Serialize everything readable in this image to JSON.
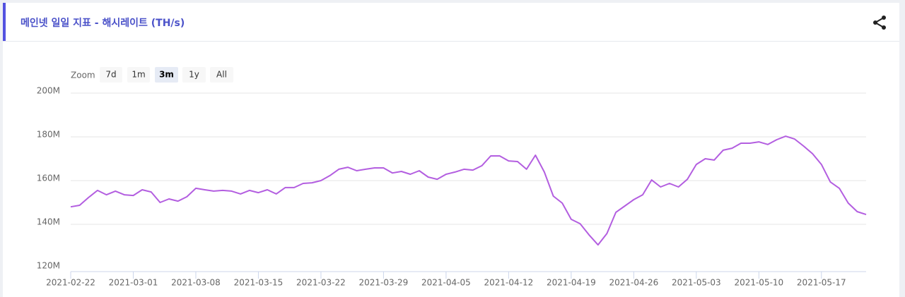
{
  "header": {
    "title": "메인넷 일일 지표 - 해시레이트 (TH/s)"
  },
  "zoom": {
    "label": "Zoom",
    "buttons": [
      "7d",
      "1m",
      "3m",
      "1y",
      "All"
    ],
    "selected": 2
  },
  "chart_data": {
    "type": "line",
    "color": "#b35ee0",
    "x": [
      "2021-02-22",
      "2021-02-23",
      "2021-02-24",
      "2021-02-25",
      "2021-02-26",
      "2021-02-27",
      "2021-02-28",
      "2021-03-01",
      "2021-03-02",
      "2021-03-03",
      "2021-03-04",
      "2021-03-05",
      "2021-03-06",
      "2021-03-07",
      "2021-03-08",
      "2021-03-09",
      "2021-03-10",
      "2021-03-11",
      "2021-03-12",
      "2021-03-13",
      "2021-03-14",
      "2021-03-15",
      "2021-03-16",
      "2021-03-17",
      "2021-03-18",
      "2021-03-19",
      "2021-03-20",
      "2021-03-21",
      "2021-03-22",
      "2021-03-23",
      "2021-03-24",
      "2021-03-25",
      "2021-03-26",
      "2021-03-27",
      "2021-03-28",
      "2021-03-29",
      "2021-03-30",
      "2021-03-31",
      "2021-04-01",
      "2021-04-02",
      "2021-04-03",
      "2021-04-04",
      "2021-04-05",
      "2021-04-06",
      "2021-04-07",
      "2021-04-08",
      "2021-04-09",
      "2021-04-10",
      "2021-04-11",
      "2021-04-12",
      "2021-04-13",
      "2021-04-14",
      "2021-04-15",
      "2021-04-16",
      "2021-04-17",
      "2021-04-18",
      "2021-04-19",
      "2021-04-20",
      "2021-04-21",
      "2021-04-22",
      "2021-04-23",
      "2021-04-24",
      "2021-04-25",
      "2021-04-26",
      "2021-04-27",
      "2021-04-28",
      "2021-04-29",
      "2021-04-30",
      "2021-05-01",
      "2021-05-02",
      "2021-05-03",
      "2021-05-04",
      "2021-05-05",
      "2021-05-06",
      "2021-05-07",
      "2021-05-08",
      "2021-05-09",
      "2021-05-10",
      "2021-05-11",
      "2021-05-12",
      "2021-05-13",
      "2021-05-14",
      "2021-05-15",
      "2021-05-16",
      "2021-05-17",
      "2021-05-18",
      "2021-05-19",
      "2021-05-20",
      "2021-05-21",
      "2021-05-22"
    ],
    "values": [
      148000000,
      148700000,
      152300000,
      155500000,
      153500000,
      155200000,
      153500000,
      153200000,
      155800000,
      154800000,
      150000000,
      151600000,
      150600000,
      152600000,
      156500000,
      155800000,
      155200000,
      155500000,
      155200000,
      153900000,
      155500000,
      154500000,
      155800000,
      153900000,
      156800000,
      156800000,
      158700000,
      159000000,
      160000000,
      162300000,
      165200000,
      166100000,
      164500000,
      165200000,
      165800000,
      165800000,
      163500000,
      164200000,
      162900000,
      164500000,
      161600000,
      160600000,
      162900000,
      163900000,
      165200000,
      164800000,
      166800000,
      171300000,
      171300000,
      169000000,
      168700000,
      165200000,
      171600000,
      163900000,
      152900000,
      149700000,
      142300000,
      140300000,
      135200000,
      130600000,
      135800000,
      145500000,
      148400000,
      151300000,
      153500000,
      160300000,
      157100000,
      158700000,
      157100000,
      160600000,
      167400000,
      170000000,
      169400000,
      173900000,
      174800000,
      177100000,
      177100000,
      177700000,
      176500000,
      178700000,
      180300000,
      179000000,
      175800000,
      172300000,
      167400000,
      159400000,
      156500000,
      149700000,
      145800000,
      144500000
    ],
    "xlim": [
      "2021-02-22",
      "2021-05-22"
    ],
    "xticks": [
      "2021-02-22",
      "2021-03-01",
      "2021-03-08",
      "2021-03-15",
      "2021-03-22",
      "2021-03-29",
      "2021-04-05",
      "2021-04-12",
      "2021-04-19",
      "2021-04-26",
      "2021-05-03",
      "2021-05-10",
      "2021-05-17"
    ],
    "ylim": [
      120000000,
      200000000
    ],
    "yticks": [
      {
        "value": 120000000,
        "label": "120M"
      },
      {
        "value": 140000000,
        "label": "140M"
      },
      {
        "value": 160000000,
        "label": "160M"
      },
      {
        "value": 180000000,
        "label": "180M"
      },
      {
        "value": 200000000,
        "label": "200M"
      }
    ],
    "grid": true
  }
}
